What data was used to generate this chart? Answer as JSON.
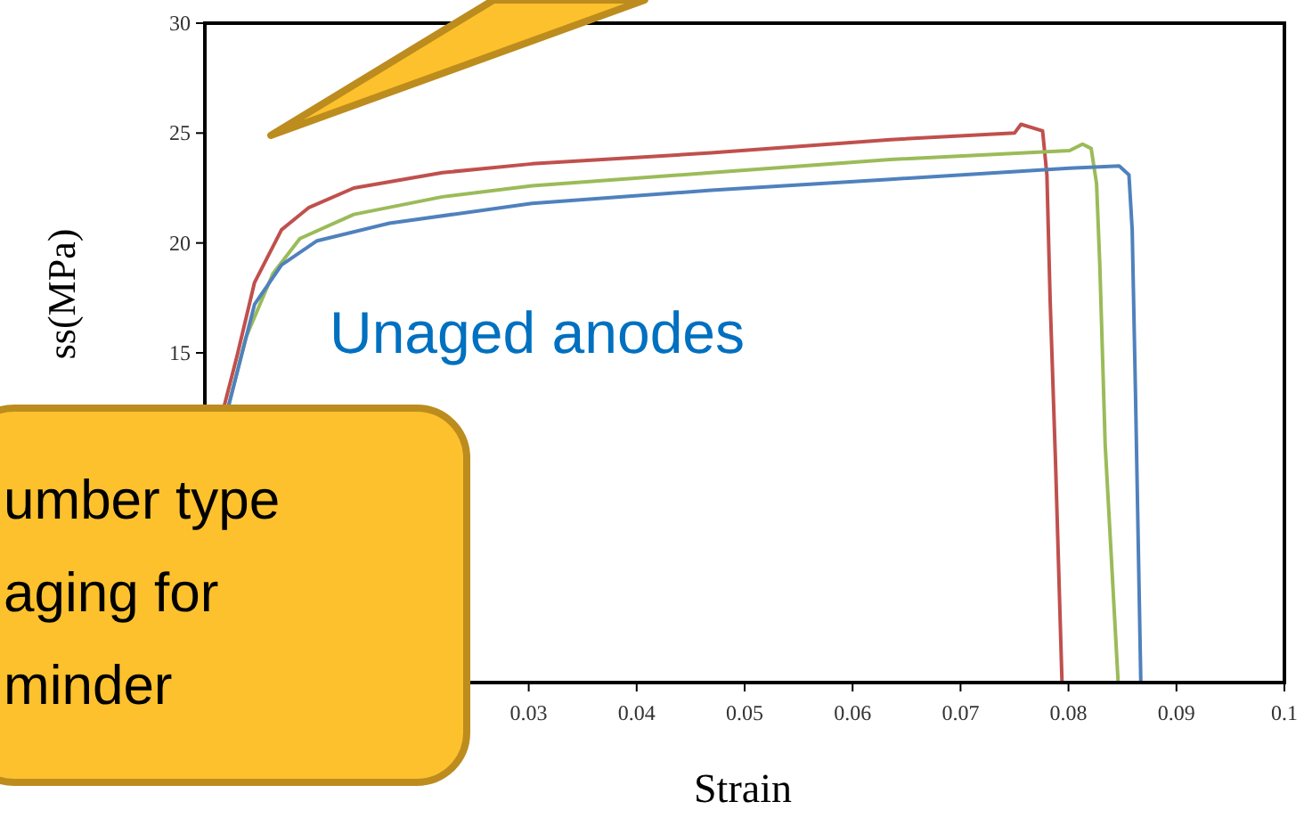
{
  "chart_data": {
    "type": "line",
    "xlabel": "Strain",
    "ylabel": "ss(MPa)",
    "xlim": [
      0,
      0.1
    ],
    "ylim": [
      0,
      30
    ],
    "xticks": [
      0.03,
      0.04,
      0.05,
      0.06,
      0.07,
      0.08,
      0.09,
      0.1
    ],
    "yticks": [
      15,
      20,
      25,
      30
    ],
    "grid": false,
    "line_style": "solid",
    "annotations": [
      "Unaged anodes",
      "umber type\naging for\nminder"
    ],
    "series": [
      {
        "color": "#c0504d",
        "x": [
          0.0018,
          0.003,
          0.0046,
          0.0071,
          0.0096,
          0.0138,
          0.022,
          0.0303,
          0.0469,
          0.0635,
          0.075,
          0.0756,
          0.0776,
          0.078,
          0.0783,
          0.0788,
          0.0794
        ],
        "values": [
          12.6,
          14.9,
          18.2,
          20.6,
          21.6,
          22.5,
          23.2,
          23.6,
          24.1,
          24.7,
          25.0,
          25.4,
          25.1,
          23.1,
          17.4,
          10.0,
          0
        ]
      },
      {
        "color": "#9bbb59",
        "x": [
          0.0022,
          0.0038,
          0.0063,
          0.0088,
          0.0138,
          0.022,
          0.0303,
          0.0469,
          0.0635,
          0.0801,
          0.0813,
          0.0821,
          0.0826,
          0.0829,
          0.0834,
          0.0846
        ],
        "values": [
          12.6,
          15.7,
          18.6,
          20.2,
          21.3,
          22.1,
          22.6,
          23.2,
          23.8,
          24.2,
          24.5,
          24.3,
          22.7,
          19.0,
          10.8,
          0
        ]
      },
      {
        "color": "#4f81bd",
        "x": [
          0.0022,
          0.0046,
          0.0071,
          0.0104,
          0.0171,
          0.0303,
          0.0469,
          0.0635,
          0.0801,
          0.0847,
          0.0856,
          0.0859,
          0.0862,
          0.0867
        ],
        "values": [
          12.6,
          17.2,
          19.0,
          20.1,
          20.9,
          21.8,
          22.4,
          22.9,
          23.4,
          23.5,
          23.1,
          20.6,
          13.3,
          0
        ]
      }
    ]
  }
}
